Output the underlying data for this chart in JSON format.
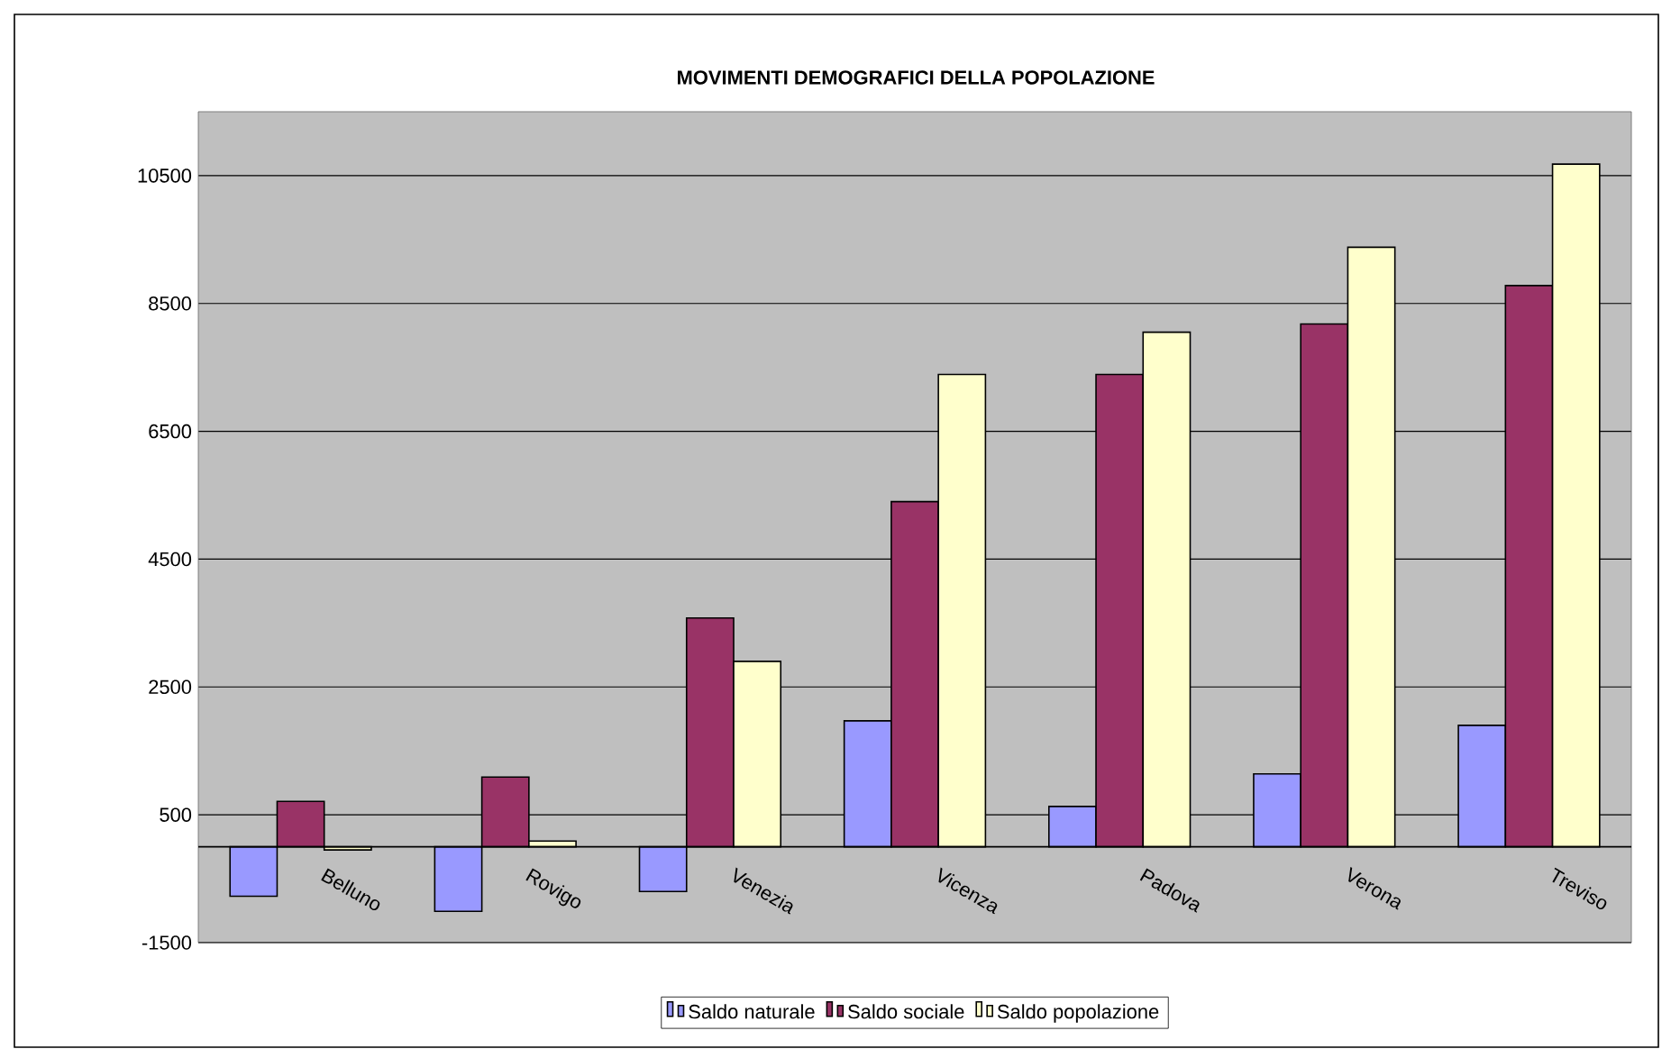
{
  "chart_data": {
    "type": "bar",
    "title": "MOVIMENTI DEMOGRAFICI DELLA POPOLAZIONE",
    "categories": [
      "Belluno",
      "Rovigo",
      "Venezia",
      "Vicenza",
      "Padova",
      "Verona",
      "Treviso"
    ],
    "series": [
      {
        "name": "Saldo naturale",
        "color": "#9999ff",
        "values": [
          -775,
          -1010,
          -700,
          1970,
          630,
          1140,
          1900
        ]
      },
      {
        "name": "Saldo sociale",
        "color": "#993366",
        "values": [
          710,
          1090,
          3580,
          5400,
          7390,
          8180,
          8780
        ]
      },
      {
        "name": "Saldo popolazione",
        "color": "#ffffcc",
        "values": [
          -50,
          90,
          2900,
          7390,
          8050,
          9380,
          10680
        ]
      }
    ],
    "ylim": [
      -1500,
      11500
    ],
    "yticks": [
      -1500,
      500,
      2500,
      4500,
      6500,
      8500,
      10500
    ],
    "grid": "y",
    "legend": "bottom"
  }
}
